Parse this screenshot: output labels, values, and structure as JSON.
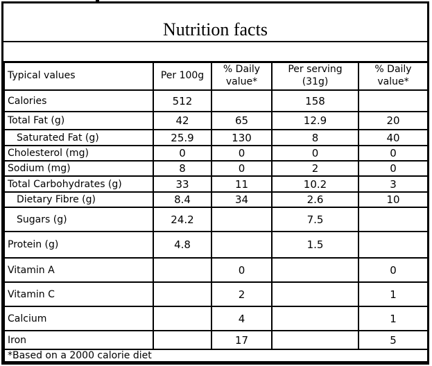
{
  "title": "Nutrition facts",
  "colors": {
    "background": "#ffffff",
    "border": "#000000",
    "text": "#000000"
  },
  "table": {
    "headers": [
      "Typical values",
      "Per 100g",
      "% Daily value*",
      "Per serving (31g)",
      "% Daily value*"
    ],
    "rows": [
      {
        "label": "Calories",
        "values": [
          "512",
          "",
          "158",
          ""
        ],
        "bold_label": true,
        "bold_values": false,
        "indent": false
      },
      {
        "label": "Total Fat (g)",
        "values": [
          "42",
          "65",
          "12.9",
          "20"
        ],
        "bold_label": true,
        "bold_values": true,
        "indent": false
      },
      {
        "label": "Saturated Fat (g)",
        "values": [
          "25.9",
          "130",
          "8",
          "40"
        ],
        "bold_label": false,
        "bold_values": false,
        "indent": true
      },
      {
        "label": "Cholesterol (mg)",
        "values": [
          "0",
          "0",
          "0",
          "0"
        ],
        "bold_label": true,
        "bold_values": true,
        "indent": false
      },
      {
        "label": "Sodium (mg)",
        "values": [
          "8",
          "0",
          "2",
          "0"
        ],
        "bold_label": true,
        "bold_values": true,
        "indent": false
      },
      {
        "label": "Total Carbohydrates (g)",
        "values": [
          "33",
          "11",
          "10.2",
          "3"
        ],
        "bold_label": true,
        "bold_values": true,
        "indent": false
      },
      {
        "label": "Dietary Fibre (g)",
        "values": [
          "8.4",
          "34",
          "2.6",
          "10"
        ],
        "bold_label": false,
        "bold_values": false,
        "indent": true
      },
      {
        "label": "Sugars (g)",
        "values": [
          "24.2",
          "",
          "7.5",
          ""
        ],
        "bold_label": false,
        "bold_values": false,
        "indent": true
      },
      {
        "label": "Protein (g)",
        "values": [
          "4.8",
          "",
          "1.5",
          ""
        ],
        "bold_label": true,
        "bold_values": false,
        "indent": false
      },
      {
        "label": "Vitamin A",
        "values": [
          "",
          "0",
          "",
          "0"
        ],
        "bold_label": false,
        "bold_values": false,
        "indent": false
      },
      {
        "label": "Vitamin C",
        "values": [
          "",
          "2",
          "",
          "1"
        ],
        "bold_label": false,
        "bold_values": false,
        "indent": false
      },
      {
        "label": "Calcium",
        "values": [
          "",
          "4",
          "",
          "1"
        ],
        "bold_label": false,
        "bold_values": false,
        "indent": false
      },
      {
        "label": "Iron",
        "values": [
          "",
          "17",
          "",
          "5"
        ],
        "bold_label": false,
        "bold_values": false,
        "indent": false
      }
    ],
    "footnote": "*Based on a 2000 calorie diet"
  }
}
